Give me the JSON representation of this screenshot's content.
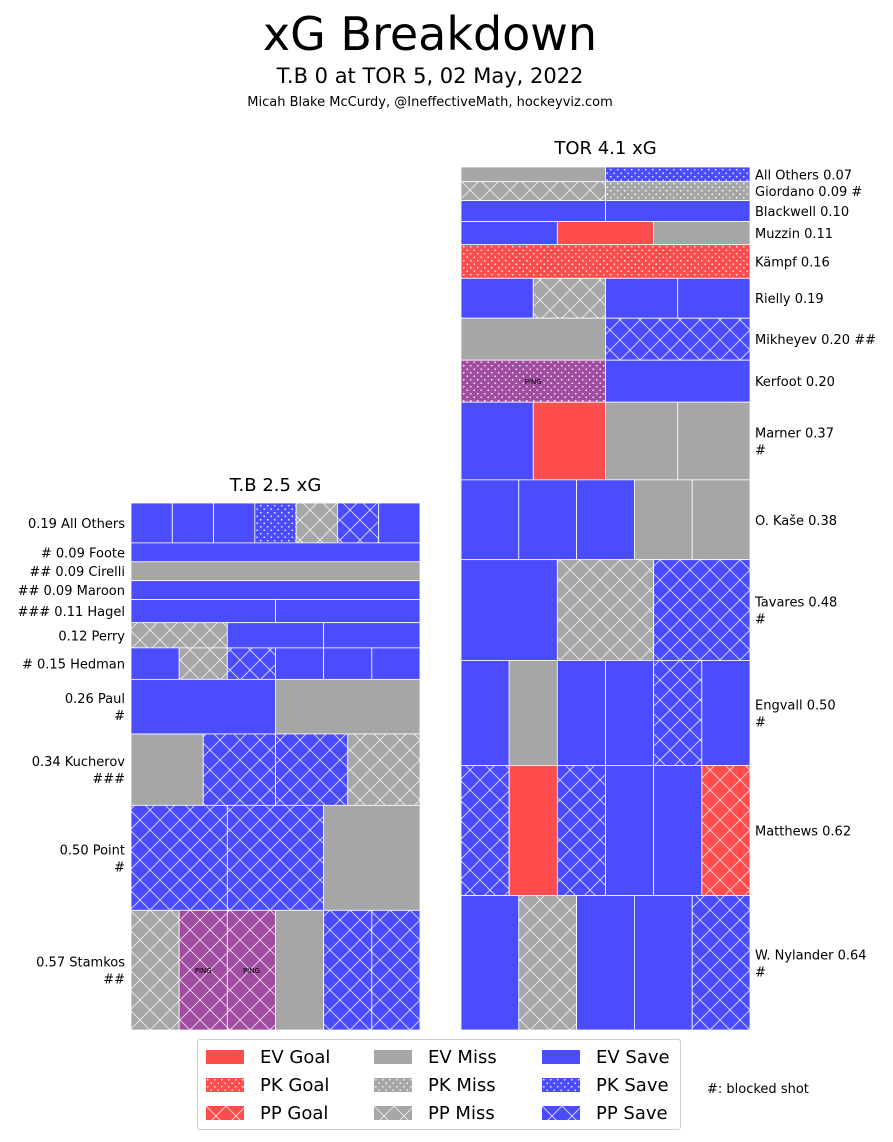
{
  "title": "xG Breakdown",
  "subtitle": "T.B 0 at TOR 5, 02 May, 2022",
  "credit": "Micah Blake McCurdy, @IneffectiveMath, hockeyviz.com",
  "colors": {
    "goal": "#ff4c4c",
    "miss": "#a6a6a6",
    "save": "#4c4cff",
    "ping": "#a04ca0"
  },
  "footnote": "#: blocked shot",
  "legend": [
    {
      "label": "EV Goal",
      "kind": "goal",
      "pattern": "solid"
    },
    {
      "label": "PK Goal",
      "kind": "goal",
      "pattern": "dots"
    },
    {
      "label": "PP Goal",
      "kind": "goal",
      "pattern": "hatch"
    },
    {
      "label": "EV Miss",
      "kind": "miss",
      "pattern": "solid"
    },
    {
      "label": "PK Miss",
      "kind": "miss",
      "pattern": "dots"
    },
    {
      "label": "PP Miss",
      "kind": "miss",
      "pattern": "hatch"
    },
    {
      "label": "EV Save",
      "kind": "save",
      "pattern": "solid"
    },
    {
      "label": "PK Save",
      "kind": "save",
      "pattern": "dots"
    },
    {
      "label": "PP Save",
      "kind": "save",
      "pattern": "hatch"
    }
  ],
  "chart_data": {
    "type": "treemap",
    "teams": [
      {
        "team": "T.B",
        "total_xg": 2.5,
        "header": "T.B 2.5 xG",
        "label_side": "left",
        "players": [
          {
            "label": "0.19 All Others",
            "xg": 0.19,
            "shots": [
              {
                "outcome": "save",
                "situation": "ev"
              },
              {
                "outcome": "save",
                "situation": "ev"
              },
              {
                "outcome": "save",
                "situation": "ev"
              },
              {
                "outcome": "save",
                "situation": "pk"
              },
              {
                "outcome": "miss",
                "situation": "pp"
              },
              {
                "outcome": "save",
                "situation": "pp"
              },
              {
                "outcome": "save",
                "situation": "ev"
              }
            ]
          },
          {
            "label": "# 0.09 Foote",
            "xg": 0.09,
            "shots": [
              {
                "outcome": "save",
                "situation": "ev"
              }
            ]
          },
          {
            "label": "## 0.09 Cirelli",
            "xg": 0.09,
            "shots": [
              {
                "outcome": "miss",
                "situation": "ev"
              }
            ]
          },
          {
            "label": "## 0.09 Maroon",
            "xg": 0.09,
            "shots": [
              {
                "outcome": "save",
                "situation": "ev"
              }
            ]
          },
          {
            "label": "### 0.11 Hagel",
            "xg": 0.11,
            "shots": [
              {
                "outcome": "save",
                "situation": "ev"
              },
              {
                "outcome": "save",
                "situation": "ev"
              }
            ]
          },
          {
            "label": "0.12 Perry",
            "xg": 0.12,
            "shots": [
              {
                "outcome": "miss",
                "situation": "pp"
              },
              {
                "outcome": "save",
                "situation": "ev"
              },
              {
                "outcome": "save",
                "situation": "ev"
              }
            ]
          },
          {
            "label": "# 0.15 Hedman",
            "xg": 0.15,
            "shots": [
              {
                "outcome": "save",
                "situation": "ev"
              },
              {
                "outcome": "miss",
                "situation": "pp"
              },
              {
                "outcome": "save",
                "situation": "pp"
              },
              {
                "outcome": "save",
                "situation": "ev"
              },
              {
                "outcome": "save",
                "situation": "ev"
              },
              {
                "outcome": "save",
                "situation": "ev"
              }
            ]
          },
          {
            "label": "0.26 Paul\n#",
            "xg": 0.26,
            "shots": [
              {
                "outcome": "save",
                "situation": "ev"
              },
              {
                "outcome": "miss",
                "situation": "ev"
              }
            ]
          },
          {
            "label": "0.34 Kucherov\n###",
            "xg": 0.34,
            "shots": [
              {
                "outcome": "miss",
                "situation": "ev"
              },
              {
                "outcome": "save",
                "situation": "pp"
              },
              {
                "outcome": "save",
                "situation": "pp"
              },
              {
                "outcome": "miss",
                "situation": "pp"
              }
            ]
          },
          {
            "label": "0.50 Point\n#",
            "xg": 0.5,
            "shots": [
              {
                "outcome": "save",
                "situation": "pp"
              },
              {
                "outcome": "save",
                "situation": "pp"
              },
              {
                "outcome": "miss",
                "situation": "ev"
              }
            ]
          },
          {
            "label": "0.57 Stamkos\n##",
            "xg": 0.57,
            "shots": [
              {
                "outcome": "miss",
                "situation": "pp"
              },
              {
                "outcome": "ping",
                "situation": "pp",
                "text": "PING"
              },
              {
                "outcome": "ping",
                "situation": "pp",
                "text": "PING"
              },
              {
                "outcome": "miss",
                "situation": "ev"
              },
              {
                "outcome": "save",
                "situation": "pp"
              },
              {
                "outcome": "save",
                "situation": "pp"
              }
            ]
          }
        ]
      },
      {
        "team": "TOR",
        "total_xg": 4.1,
        "header": "TOR 4.1 xG",
        "label_side": "right",
        "players": [
          {
            "label": "All Others 0.07",
            "xg": 0.07,
            "shots": [
              {
                "outcome": "miss",
                "situation": "ev"
              },
              {
                "outcome": "save",
                "situation": "pk"
              }
            ]
          },
          {
            "label": "Giordano 0.09 #",
            "xg": 0.09,
            "shots": [
              {
                "outcome": "miss",
                "situation": "pp"
              },
              {
                "outcome": "miss",
                "situation": "pk"
              }
            ]
          },
          {
            "label": "Blackwell 0.10",
            "xg": 0.1,
            "shots": [
              {
                "outcome": "save",
                "situation": "ev"
              },
              {
                "outcome": "save",
                "situation": "ev"
              }
            ]
          },
          {
            "label": "Muzzin 0.11",
            "xg": 0.11,
            "shots": [
              {
                "outcome": "save",
                "situation": "ev"
              },
              {
                "outcome": "goal",
                "situation": "ev"
              },
              {
                "outcome": "miss",
                "situation": "ev"
              }
            ]
          },
          {
            "label": "Kämpf 0.16",
            "xg": 0.16,
            "shots": [
              {
                "outcome": "goal",
                "situation": "pk"
              }
            ]
          },
          {
            "label": "Rielly 0.19",
            "xg": 0.19,
            "shots": [
              {
                "outcome": "save",
                "situation": "ev"
              },
              {
                "outcome": "miss",
                "situation": "pp"
              },
              {
                "outcome": "save",
                "situation": "ev"
              },
              {
                "outcome": "save",
                "situation": "ev"
              }
            ]
          },
          {
            "label": "Mikheyev 0.20 ##",
            "xg": 0.2,
            "shots": [
              {
                "outcome": "miss",
                "situation": "ev"
              },
              {
                "outcome": "save",
                "situation": "pp"
              }
            ]
          },
          {
            "label": "Kerfoot 0.20",
            "xg": 0.2,
            "shots": [
              {
                "outcome": "ping",
                "situation": "pk",
                "text": "PING"
              },
              {
                "outcome": "save",
                "situation": "ev"
              }
            ]
          },
          {
            "label": "Marner 0.37\n#",
            "xg": 0.37,
            "shots": [
              {
                "outcome": "save",
                "situation": "ev"
              },
              {
                "outcome": "goal",
                "situation": "ev"
              },
              {
                "outcome": "miss",
                "situation": "ev"
              },
              {
                "outcome": "miss",
                "situation": "ev"
              }
            ]
          },
          {
            "label": "O. Kaše 0.38",
            "xg": 0.38,
            "shots": [
              {
                "outcome": "save",
                "situation": "ev"
              },
              {
                "outcome": "save",
                "situation": "ev"
              },
              {
                "outcome": "save",
                "situation": "ev"
              },
              {
                "outcome": "miss",
                "situation": "ev"
              },
              {
                "outcome": "miss",
                "situation": "ev"
              }
            ]
          },
          {
            "label": "Tavares 0.48\n#",
            "xg": 0.48,
            "shots": [
              {
                "outcome": "save",
                "situation": "ev"
              },
              {
                "outcome": "miss",
                "situation": "pp"
              },
              {
                "outcome": "save",
                "situation": "pp"
              }
            ]
          },
          {
            "label": "Engvall 0.50\n#",
            "xg": 0.5,
            "shots": [
              {
                "outcome": "save",
                "situation": "ev"
              },
              {
                "outcome": "miss",
                "situation": "ev"
              },
              {
                "outcome": "save",
                "situation": "ev"
              },
              {
                "outcome": "save",
                "situation": "ev"
              },
              {
                "outcome": "save",
                "situation": "pp"
              },
              {
                "outcome": "save",
                "situation": "ev"
              }
            ]
          },
          {
            "label": "Matthews 0.62",
            "xg": 0.62,
            "shots": [
              {
                "outcome": "save",
                "situation": "pp"
              },
              {
                "outcome": "goal",
                "situation": "ev"
              },
              {
                "outcome": "save",
                "situation": "pp"
              },
              {
                "outcome": "save",
                "situation": "ev"
              },
              {
                "outcome": "save",
                "situation": "ev"
              },
              {
                "outcome": "goal",
                "situation": "pp"
              }
            ]
          },
          {
            "label": "W. Nylander 0.64\n#",
            "xg": 0.64,
            "shots": [
              {
                "outcome": "save",
                "situation": "ev"
              },
              {
                "outcome": "miss",
                "situation": "pp"
              },
              {
                "outcome": "save",
                "situation": "ev"
              },
              {
                "outcome": "save",
                "situation": "ev"
              },
              {
                "outcome": "save",
                "situation": "pp"
              }
            ]
          }
        ]
      }
    ]
  }
}
